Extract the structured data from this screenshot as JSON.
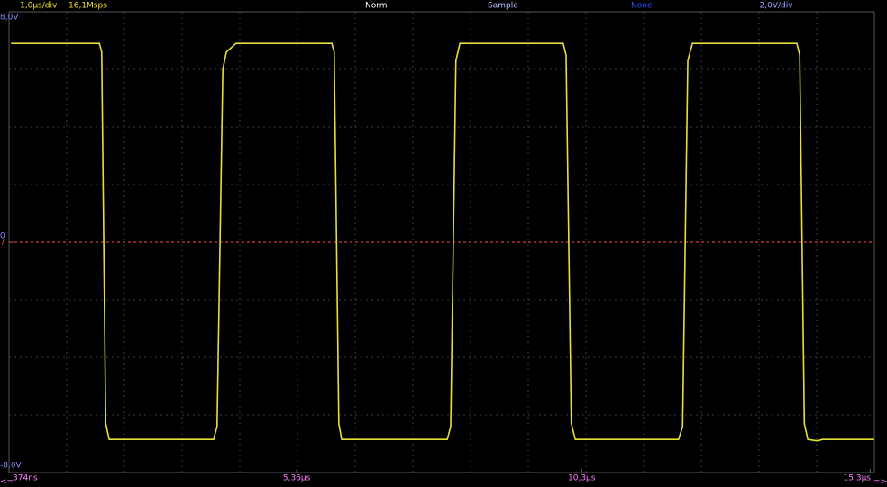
{
  "header": {
    "timebase": "1,0µs/div",
    "sample_rate": "16,1Msps",
    "trigger_mode": "Norm",
    "acquisition": "Sample",
    "none_label": "None",
    "volts_per_div": "~2,0V/div",
    "trigger_marker": "/",
    "scroll_left": "<=",
    "scroll_right": "=>"
  },
  "chart_data": {
    "type": "line",
    "x": [
      0.41,
      1.94,
      1.98,
      2.05,
      2.11,
      3.92,
      3.98,
      4.08,
      4.14,
      4.31,
      5.97,
      6.01,
      6.09,
      6.14,
      7.97,
      8.03,
      8.12,
      8.19,
      9.98,
      10.03,
      10.12,
      10.19,
      11.98,
      12.05,
      12.14,
      12.22,
      14.03,
      14.08,
      14.16,
      14.22,
      14.39,
      14.47,
      15.37
    ],
    "series": [
      {
        "color": "#e6e032",
        "values": [
          6.9,
          6.9,
          6.6,
          -6.3,
          -6.85,
          -6.85,
          -6.4,
          6.0,
          6.6,
          6.9,
          6.9,
          6.6,
          -6.3,
          -6.85,
          -6.85,
          -6.4,
          6.3,
          6.9,
          6.9,
          6.5,
          -6.3,
          -6.85,
          -6.85,
          -6.4,
          6.3,
          6.9,
          6.9,
          6.5,
          -6.3,
          -6.85,
          -6.9,
          -6.85,
          -6.85
        ]
      }
    ],
    "xlim": [
      0.374,
      15.374
    ],
    "ylim": [
      -8,
      8
    ],
    "xticks": [
      {
        "value": 0.374,
        "label": "374ns"
      },
      {
        "value": 5.36,
        "label": "5,36µs"
      },
      {
        "value": 10.3,
        "label": "10,3µs"
      },
      {
        "value": 15.3,
        "label": "15,3µs"
      }
    ],
    "yticks": [
      {
        "value": 8,
        "label": "8,0V"
      },
      0,
      {
        "value": -8,
        "label": "-8,0V"
      }
    ],
    "trigger_level": 0,
    "trigger_color": "#ff5050",
    "grid": true
  }
}
